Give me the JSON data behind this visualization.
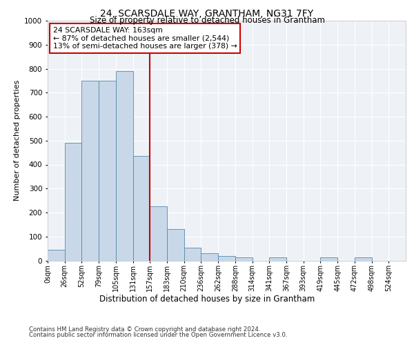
{
  "title1": "24, SCARSDALE WAY, GRANTHAM, NG31 7FY",
  "title2": "Size of property relative to detached houses in Grantham",
  "xlabel": "Distribution of detached houses by size in Grantham",
  "ylabel": "Number of detached properties",
  "bin_labels": [
    "0sqm",
    "26sqm",
    "52sqm",
    "79sqm",
    "105sqm",
    "131sqm",
    "157sqm",
    "183sqm",
    "210sqm",
    "236sqm",
    "262sqm",
    "288sqm",
    "314sqm",
    "341sqm",
    "367sqm",
    "393sqm",
    "419sqm",
    "445sqm",
    "472sqm",
    "498sqm",
    "524sqm"
  ],
  "bar_heights": [
    45,
    490,
    750,
    750,
    790,
    435,
    225,
    130,
    52,
    30,
    18,
    12,
    0,
    12,
    0,
    0,
    12,
    0,
    12,
    0,
    0
  ],
  "bar_color": "#c8d8e8",
  "bar_edge_color": "#5588aa",
  "vline_x": 6,
  "vline_color": "#cc0000",
  "annotation_text": "24 SCARSDALE WAY: 163sqm\n← 87% of detached houses are smaller (2,544)\n13% of semi-detached houses are larger (378) →",
  "annotation_box_color": "#ffffff",
  "annotation_box_edge": "#cc0000",
  "ylim": [
    0,
    1000
  ],
  "yticks": [
    0,
    100,
    200,
    300,
    400,
    500,
    600,
    700,
    800,
    900,
    1000
  ],
  "footer1": "Contains HM Land Registry data © Crown copyright and database right 2024.",
  "footer2": "Contains public sector information licensed under the Open Government Licence v3.0.",
  "bg_color": "#eef2f7"
}
